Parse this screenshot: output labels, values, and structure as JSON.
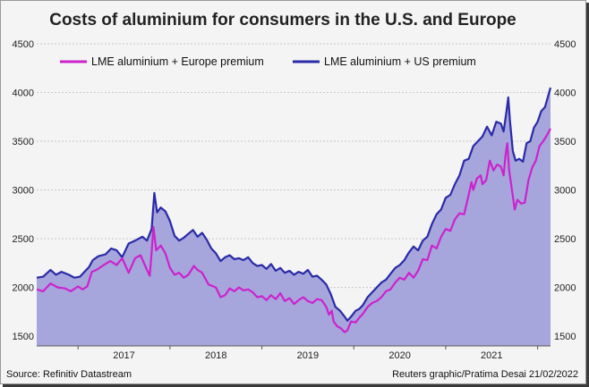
{
  "chart_data": {
    "type": "area",
    "title": "Costs of aluminium for consumers in the U.S. and Europe",
    "x_labels": [
      "2017",
      "2018",
      "2019",
      "2020",
      "2021"
    ],
    "ylim": [
      1400,
      4500
    ],
    "y_ticks": [
      1500,
      2000,
      2500,
      3000,
      3500,
      4000,
      4500
    ],
    "x_range": [
      2016.55,
      2022.14
    ],
    "legend_position": "top-left",
    "source": "Source: Refinitiv Datastream",
    "credit": "Reuters graphic/Pratima Desai 21/02/2022",
    "series": [
      {
        "name": "LME aluminium + Europe premium",
        "color": "#cc22cc",
        "style": "line",
        "points": [
          [
            2016.55,
            1980
          ],
          [
            2016.62,
            1960
          ],
          [
            2016.7,
            2040
          ],
          [
            2016.78,
            2000
          ],
          [
            2016.86,
            1990
          ],
          [
            2016.92,
            1960
          ],
          [
            2017.0,
            2010
          ],
          [
            2017.05,
            1980
          ],
          [
            2017.1,
            2010
          ],
          [
            2017.15,
            2160
          ],
          [
            2017.2,
            2180
          ],
          [
            2017.28,
            2230
          ],
          [
            2017.35,
            2270
          ],
          [
            2017.42,
            2230
          ],
          [
            2017.48,
            2300
          ],
          [
            2017.55,
            2150
          ],
          [
            2017.62,
            2300
          ],
          [
            2017.68,
            2330
          ],
          [
            2017.74,
            2200
          ],
          [
            2017.78,
            2120
          ],
          [
            2017.8,
            2360
          ],
          [
            2017.82,
            2620
          ],
          [
            2017.85,
            2380
          ],
          [
            2017.9,
            2430
          ],
          [
            2017.95,
            2350
          ],
          [
            2018.0,
            2200
          ],
          [
            2018.05,
            2130
          ],
          [
            2018.1,
            2150
          ],
          [
            2018.15,
            2100
          ],
          [
            2018.2,
            2130
          ],
          [
            2018.26,
            2220
          ],
          [
            2018.3,
            2180
          ],
          [
            2018.35,
            2150
          ],
          [
            2018.42,
            2030
          ],
          [
            2018.5,
            2000
          ],
          [
            2018.55,
            1900
          ],
          [
            2018.6,
            1920
          ],
          [
            2018.65,
            1990
          ],
          [
            2018.7,
            1960
          ],
          [
            2018.75,
            2000
          ],
          [
            2018.8,
            1970
          ],
          [
            2018.85,
            1980
          ],
          [
            2018.9,
            1950
          ],
          [
            2018.95,
            1900
          ],
          [
            2019.0,
            1910
          ],
          [
            2019.05,
            1870
          ],
          [
            2019.1,
            1920
          ],
          [
            2019.15,
            1880
          ],
          [
            2019.2,
            1940
          ],
          [
            2019.25,
            1860
          ],
          [
            2019.3,
            1890
          ],
          [
            2019.35,
            1830
          ],
          [
            2019.4,
            1870
          ],
          [
            2019.45,
            1900
          ],
          [
            2019.5,
            1860
          ],
          [
            2019.55,
            1840
          ],
          [
            2019.6,
            1880
          ],
          [
            2019.65,
            1870
          ],
          [
            2019.7,
            1800
          ],
          [
            2019.73,
            1720
          ],
          [
            2019.76,
            1760
          ],
          [
            2019.78,
            1650
          ],
          [
            2019.82,
            1600
          ],
          [
            2019.86,
            1580
          ],
          [
            2019.9,
            1540
          ],
          [
            2019.93,
            1560
          ],
          [
            2019.97,
            1650
          ],
          [
            2020.02,
            1640
          ],
          [
            2020.06,
            1690
          ],
          [
            2020.1,
            1730
          ],
          [
            2020.15,
            1800
          ],
          [
            2020.2,
            1840
          ],
          [
            2020.25,
            1860
          ],
          [
            2020.3,
            1900
          ],
          [
            2020.35,
            1960
          ],
          [
            2020.4,
            1980
          ],
          [
            2020.45,
            2050
          ],
          [
            2020.5,
            2100
          ],
          [
            2020.55,
            2080
          ],
          [
            2020.6,
            2150
          ],
          [
            2020.65,
            2100
          ],
          [
            2020.7,
            2170
          ],
          [
            2020.75,
            2290
          ],
          [
            2020.8,
            2280
          ],
          [
            2020.85,
            2430
          ],
          [
            2020.9,
            2400
          ],
          [
            2020.95,
            2520
          ],
          [
            2021.0,
            2600
          ],
          [
            2021.05,
            2580
          ],
          [
            2021.1,
            2700
          ],
          [
            2021.15,
            2760
          ],
          [
            2021.2,
            2750
          ],
          [
            2021.25,
            2950
          ],
          [
            2021.28,
            3080
          ],
          [
            2021.3,
            3000
          ],
          [
            2021.34,
            3120
          ],
          [
            2021.38,
            3150
          ],
          [
            2021.4,
            3060
          ],
          [
            2021.44,
            3100
          ],
          [
            2021.48,
            3300
          ],
          [
            2021.52,
            3200
          ],
          [
            2021.56,
            3260
          ],
          [
            2021.6,
            3240
          ],
          [
            2021.63,
            3150
          ],
          [
            2021.65,
            3350
          ],
          [
            2021.67,
            3480
          ],
          [
            2021.69,
            3200
          ],
          [
            2021.72,
            3000
          ],
          [
            2021.75,
            2800
          ],
          [
            2021.78,
            2900
          ],
          [
            2021.82,
            2860
          ],
          [
            2021.86,
            2870
          ],
          [
            2021.9,
            3100
          ],
          [
            2021.94,
            3230
          ],
          [
            2021.98,
            3300
          ],
          [
            2022.02,
            3450
          ],
          [
            2022.06,
            3500
          ],
          [
            2022.1,
            3560
          ],
          [
            2022.14,
            3630
          ]
        ]
      },
      {
        "name": "LME aluminium + US premium",
        "color": "#2a2aa8",
        "fill": "#a6a6dd",
        "style": "area",
        "points": [
          [
            2016.55,
            2100
          ],
          [
            2016.62,
            2110
          ],
          [
            2016.7,
            2180
          ],
          [
            2016.76,
            2130
          ],
          [
            2016.82,
            2160
          ],
          [
            2016.9,
            2130
          ],
          [
            2016.96,
            2100
          ],
          [
            2017.02,
            2110
          ],
          [
            2017.08,
            2170
          ],
          [
            2017.12,
            2210
          ],
          [
            2017.16,
            2280
          ],
          [
            2017.22,
            2320
          ],
          [
            2017.3,
            2340
          ],
          [
            2017.36,
            2400
          ],
          [
            2017.42,
            2380
          ],
          [
            2017.48,
            2310
          ],
          [
            2017.55,
            2450
          ],
          [
            2017.62,
            2480
          ],
          [
            2017.7,
            2520
          ],
          [
            2017.75,
            2480
          ],
          [
            2017.8,
            2600
          ],
          [
            2017.83,
            2970
          ],
          [
            2017.86,
            2770
          ],
          [
            2017.9,
            2820
          ],
          [
            2017.95,
            2780
          ],
          [
            2018.0,
            2680
          ],
          [
            2018.05,
            2530
          ],
          [
            2018.1,
            2480
          ],
          [
            2018.15,
            2510
          ],
          [
            2018.2,
            2550
          ],
          [
            2018.25,
            2590
          ],
          [
            2018.3,
            2520
          ],
          [
            2018.35,
            2560
          ],
          [
            2018.4,
            2490
          ],
          [
            2018.45,
            2400
          ],
          [
            2018.5,
            2350
          ],
          [
            2018.55,
            2270
          ],
          [
            2018.6,
            2310
          ],
          [
            2018.65,
            2330
          ],
          [
            2018.7,
            2290
          ],
          [
            2018.75,
            2300
          ],
          [
            2018.8,
            2280
          ],
          [
            2018.85,
            2310
          ],
          [
            2018.9,
            2250
          ],
          [
            2018.95,
            2220
          ],
          [
            2019.0,
            2230
          ],
          [
            2019.05,
            2190
          ],
          [
            2019.1,
            2240
          ],
          [
            2019.15,
            2170
          ],
          [
            2019.2,
            2200
          ],
          [
            2019.25,
            2150
          ],
          [
            2019.3,
            2170
          ],
          [
            2019.35,
            2130
          ],
          [
            2019.4,
            2160
          ],
          [
            2019.45,
            2140
          ],
          [
            2019.5,
            2180
          ],
          [
            2019.55,
            2110
          ],
          [
            2019.6,
            2120
          ],
          [
            2019.65,
            2080
          ],
          [
            2019.7,
            2030
          ],
          [
            2019.75,
            1930
          ],
          [
            2019.8,
            1800
          ],
          [
            2019.85,
            1760
          ],
          [
            2019.9,
            1700
          ],
          [
            2019.93,
            1660
          ],
          [
            2019.97,
            1700
          ],
          [
            2020.02,
            1760
          ],
          [
            2020.06,
            1780
          ],
          [
            2020.1,
            1820
          ],
          [
            2020.15,
            1900
          ],
          [
            2020.2,
            1950
          ],
          [
            2020.25,
            2000
          ],
          [
            2020.3,
            2050
          ],
          [
            2020.35,
            2080
          ],
          [
            2020.4,
            2140
          ],
          [
            2020.45,
            2200
          ],
          [
            2020.5,
            2230
          ],
          [
            2020.55,
            2280
          ],
          [
            2020.6,
            2360
          ],
          [
            2020.65,
            2420
          ],
          [
            2020.7,
            2380
          ],
          [
            2020.75,
            2480
          ],
          [
            2020.8,
            2520
          ],
          [
            2020.85,
            2650
          ],
          [
            2020.9,
            2750
          ],
          [
            2020.95,
            2800
          ],
          [
            2021.0,
            2920
          ],
          [
            2021.05,
            2950
          ],
          [
            2021.1,
            3060
          ],
          [
            2021.15,
            3150
          ],
          [
            2021.2,
            3300
          ],
          [
            2021.25,
            3320
          ],
          [
            2021.3,
            3450
          ],
          [
            2021.35,
            3500
          ],
          [
            2021.4,
            3550
          ],
          [
            2021.45,
            3650
          ],
          [
            2021.5,
            3560
          ],
          [
            2021.55,
            3700
          ],
          [
            2021.6,
            3680
          ],
          [
            2021.63,
            3600
          ],
          [
            2021.66,
            3800
          ],
          [
            2021.68,
            3950
          ],
          [
            2021.7,
            3700
          ],
          [
            2021.73,
            3400
          ],
          [
            2021.76,
            3300
          ],
          [
            2021.8,
            3320
          ],
          [
            2021.84,
            3290
          ],
          [
            2021.88,
            3480
          ],
          [
            2021.92,
            3500
          ],
          [
            2021.96,
            3640
          ],
          [
            2022.0,
            3700
          ],
          [
            2022.04,
            3810
          ],
          [
            2022.08,
            3850
          ],
          [
            2022.11,
            3950
          ],
          [
            2022.14,
            4050
          ]
        ]
      }
    ]
  }
}
